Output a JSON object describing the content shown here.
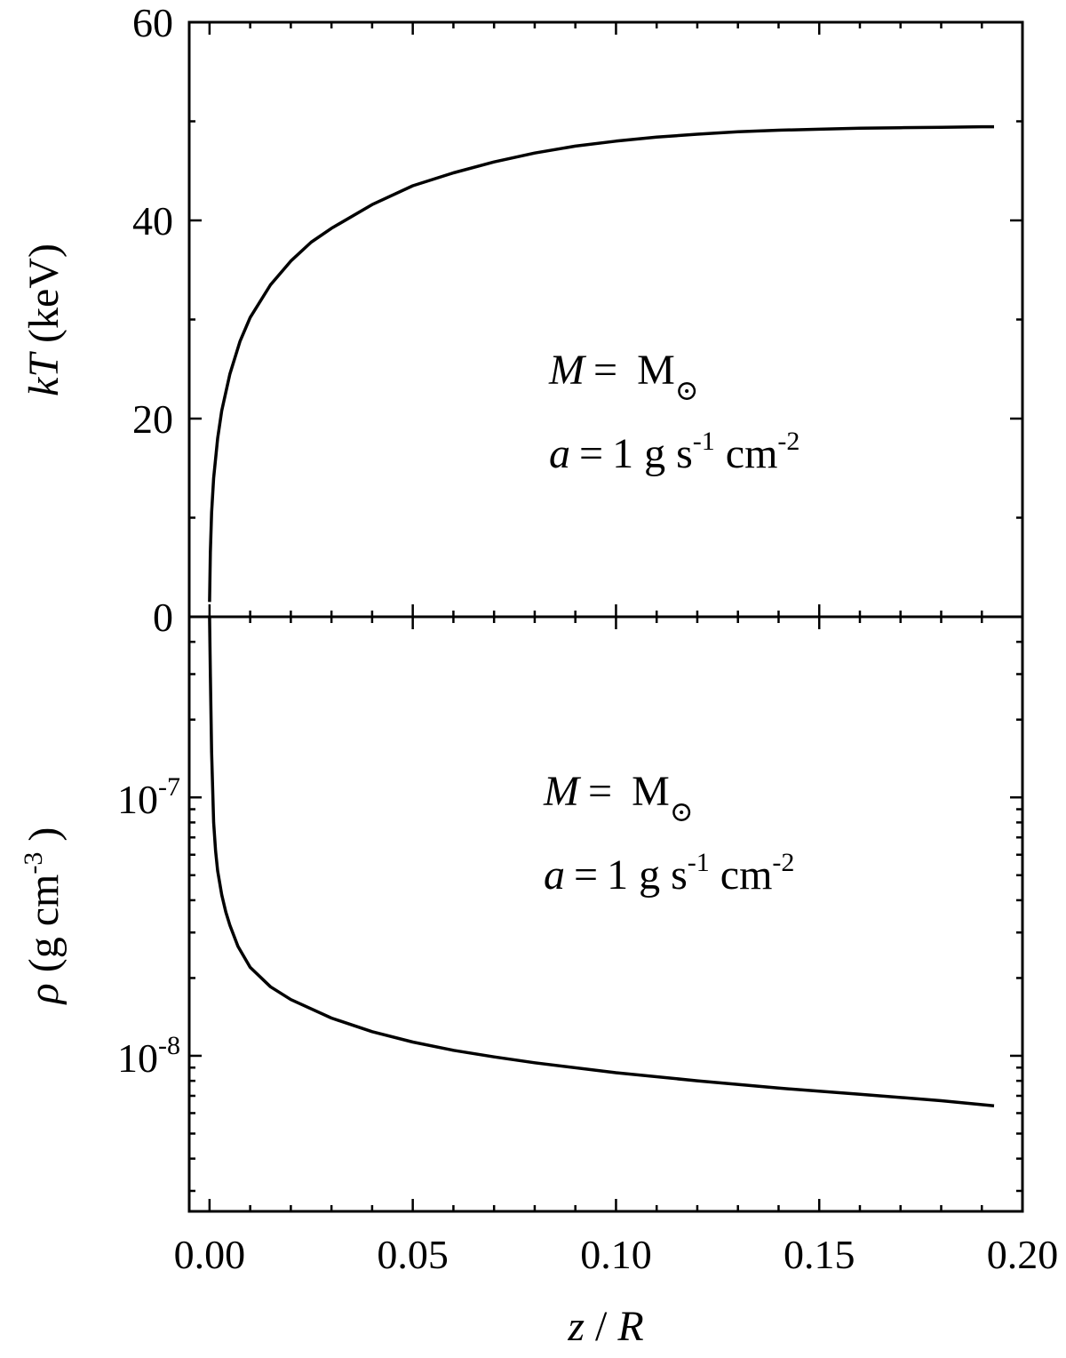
{
  "chart_data": [
    {
      "type": "line",
      "panel": "top",
      "ylabel_italic": "kT",
      "ylabel_rest": " (keV)",
      "xlim": [
        -0.005,
        0.2
      ],
      "ylim": [
        0,
        60
      ],
      "yticks": [
        0,
        20,
        40,
        60
      ],
      "yticks_minor_step": 10,
      "grid": false,
      "annotation": {
        "line1_var": "M",
        "line1_eq": "=",
        "line1_val": "M",
        "line1_sub": "⊙",
        "line2_var": "a",
        "line2_eq": "=",
        "line2_num": "1 g s",
        "line2_exp1": "-1",
        "line2_unit": " cm",
        "line2_exp2": "-2"
      },
      "series": [
        {
          "x": [
            0.0,
            0.0002,
            0.0005,
            0.001,
            0.002,
            0.003,
            0.005,
            0.0075,
            0.01,
            0.015,
            0.02,
            0.025,
            0.03,
            0.04,
            0.05,
            0.06,
            0.07,
            0.08,
            0.09,
            0.1,
            0.11,
            0.12,
            0.13,
            0.14,
            0.15,
            0.16,
            0.17,
            0.18,
            0.19,
            0.193
          ],
          "y": [
            1.5,
            6.5,
            10.5,
            14.0,
            18.0,
            20.8,
            24.5,
            27.8,
            30.2,
            33.5,
            35.9,
            37.8,
            39.2,
            41.6,
            43.5,
            44.8,
            45.9,
            46.8,
            47.5,
            48.0,
            48.4,
            48.7,
            48.95,
            49.1,
            49.2,
            49.3,
            49.35,
            49.4,
            49.45,
            49.45
          ]
        }
      ]
    },
    {
      "type": "line",
      "panel": "bottom",
      "xlabel_italic1": "z",
      "xlabel_sep": " / ",
      "xlabel_italic2": "R",
      "ylabel_italic": "ρ",
      "ylabel_rest": " (g cm",
      "ylabel_exp": "-3",
      "ylabel_close": " )",
      "xlim": [
        -0.005,
        0.2
      ],
      "ylim": [
        2.5e-09,
        5e-07
      ],
      "y_scale": "log",
      "yticks": [
        {
          "value": 1e-08,
          "base": "10",
          "exp": "-8"
        },
        {
          "value": 1e-07,
          "base": "10",
          "exp": "-7"
        }
      ],
      "xticks": [
        {
          "value": 0.0,
          "label": "0.00"
        },
        {
          "value": 0.05,
          "label": "0.05"
        },
        {
          "value": 0.1,
          "label": "0.10"
        },
        {
          "value": 0.15,
          "label": "0.15"
        },
        {
          "value": 0.2,
          "label": "0.20"
        }
      ],
      "xticks_minor_step": 0.01,
      "grid": false,
      "annotation": {
        "line1_var": "M",
        "line1_eq": "=",
        "line1_val": "M",
        "line1_sub": "⊙",
        "line2_var": "a",
        "line2_eq": "=",
        "line2_num": "1 g s",
        "line2_exp1": "-1",
        "line2_unit": " cm",
        "line2_exp2": "-2"
      },
      "series": [
        {
          "x": [
            0.0,
            0.0002,
            0.0005,
            0.001,
            0.0015,
            0.002,
            0.003,
            0.004,
            0.005,
            0.007,
            0.01,
            0.015,
            0.02,
            0.03,
            0.04,
            0.05,
            0.06,
            0.07,
            0.08,
            0.1,
            0.12,
            0.14,
            0.16,
            0.18,
            0.193
          ],
          "y": [
            5e-07,
            3e-07,
            1.5e-07,
            8e-08,
            6.2e-08,
            5.2e-08,
            4.2e-08,
            3.6e-08,
            3.2e-08,
            2.65e-08,
            2.2e-08,
            1.85e-08,
            1.65e-08,
            1.4e-08,
            1.24e-08,
            1.13e-08,
            1.05e-08,
            9.9e-09,
            9.4e-09,
            8.6e-09,
            8e-09,
            7.5e-09,
            7.1e-09,
            6.7e-09,
            6.4e-09
          ]
        }
      ]
    }
  ]
}
